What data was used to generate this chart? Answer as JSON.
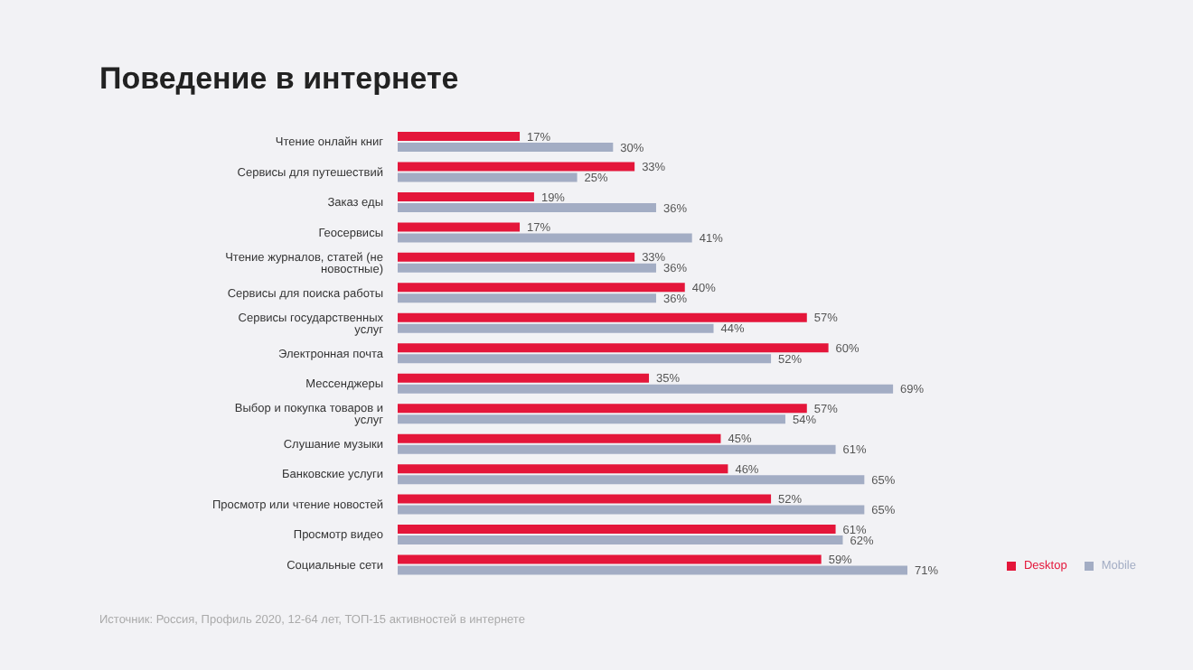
{
  "chart_data": {
    "type": "bar",
    "orientation": "horizontal",
    "title": "Поведение в интернете",
    "categories": [
      "Чтение онлайн книг",
      "Сервисы для путешествий",
      "Заказ еды",
      "Геосервисы",
      "Чтение журналов, статей (не новостные)",
      "Сервисы для поиска работы",
      "Сервисы государственных услуг",
      "Электронная почта",
      "Мессенджеры",
      "Выбор и покупка товаров и услуг",
      "Слушание музыки",
      "Банковские услуги",
      "Просмотр или чтение новостей",
      "Просмотр видео",
      "Социальные сети"
    ],
    "series": [
      {
        "name": "Desktop",
        "color": "#e4163a",
        "values": [
          17,
          33,
          19,
          17,
          33,
          40,
          57,
          60,
          35,
          57,
          45,
          46,
          52,
          61,
          59
        ],
        "value_labels": [
          "17%",
          "33%",
          "19%",
          "17%",
          "33%",
          "40%",
          "57%",
          "60%",
          "35%",
          "57%",
          "45%",
          "46%",
          "52%",
          "61%",
          "59%"
        ]
      },
      {
        "name": "Mobile",
        "color": "#a3adc4",
        "values": [
          30,
          25,
          36,
          41,
          36,
          36,
          44,
          52,
          69,
          54,
          61,
          65,
          65,
          62,
          71
        ],
        "value_labels": [
          "30%",
          "25%",
          "36%",
          "41%",
          "36%",
          "36%",
          "44%",
          "52%",
          "69%",
          "54%",
          "61%",
          "65%",
          "65%",
          "62%",
          "71%"
        ]
      }
    ],
    "data_labels": true,
    "legend": "bottom right",
    "grid": false,
    "annotations": [
      "Источник: Россия, Профиль 2020, 12-64 лет, ТОП-15 активностей в интернете"
    ]
  }
}
